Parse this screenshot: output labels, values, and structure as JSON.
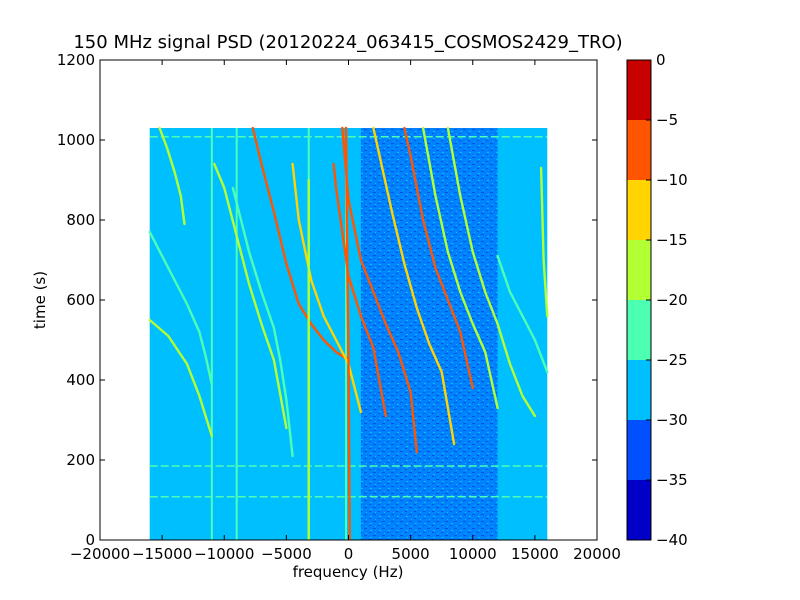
{
  "chart_data": {
    "type": "heatmap",
    "title": "150 MHz signal PSD (20120224_063415_COSMOS2429_TRO)",
    "xlabel": "frequency (Hz)",
    "ylabel": "time (s)",
    "xlim": [
      -20000,
      20000
    ],
    "ylim": [
      0,
      1200
    ],
    "x_ticks": [
      -20000,
      -15000,
      -10000,
      -5000,
      0,
      5000,
      10000,
      15000,
      20000
    ],
    "x_tick_labels": [
      "−20000",
      "−15000",
      "−10000",
      "−5000",
      "0",
      "5000",
      "10000",
      "15000",
      "20000"
    ],
    "y_ticks": [
      0,
      200,
      400,
      600,
      800,
      1000,
      1200
    ],
    "y_tick_labels": [
      "0",
      "200",
      "400",
      "600",
      "800",
      "1000",
      "1200"
    ],
    "data_extent": {
      "x": [
        -16000,
        16000
      ],
      "y": [
        0,
        1030
      ]
    },
    "background_level": -27.5,
    "noisy_region": {
      "x": [
        1000,
        12000
      ],
      "level": -32.5
    },
    "colorbar": {
      "levels": [
        -40,
        -35,
        -30,
        -25,
        -20,
        -15,
        -10,
        -5,
        0
      ],
      "tick_labels": [
        "−40",
        "−35",
        "−30",
        "−25",
        "−20",
        "−15",
        "−10",
        "−5",
        "0"
      ],
      "colors": [
        "#0000c8",
        "#0050ff",
        "#00bfff",
        "#4dffb3",
        "#b2ff33",
        "#ffd400",
        "#ff5500",
        "#c80000"
      ]
    },
    "vertical_lines": [
      {
        "x": -11000,
        "y": [
          0,
          1030
        ]
      },
      {
        "x": -9000,
        "y": [
          0,
          1030
        ]
      },
      {
        "x": -3200,
        "y": [
          0,
          1030
        ]
      },
      {
        "x": -200,
        "y": [
          0,
          1030
        ]
      }
    ],
    "horizontal_lines": [
      {
        "y": 1008,
        "x": [
          -16000,
          16000
        ]
      },
      {
        "y": 185,
        "x": [
          -16000,
          16000
        ]
      },
      {
        "y": 108,
        "x": [
          -16000,
          16000
        ]
      }
    ],
    "series": [
      {
        "x": [
          -15200,
          -14600,
          -14000,
          -13500,
          -13200
        ],
        "y": [
          1030,
          980,
          920,
          860,
          790
        ],
        "level": -17.5
      },
      {
        "x": [
          -16000,
          -14500,
          -13000,
          -12000,
          -11500,
          -11000
        ],
        "y": [
          770,
          680,
          590,
          520,
          460,
          390
        ],
        "level": -22.5
      },
      {
        "x": [
          -16000,
          -14500,
          -13000,
          -12000,
          -11000
        ],
        "y": [
          550,
          510,
          440,
          360,
          260
        ],
        "level": -17.5
      },
      {
        "x": [
          -10800,
          -10000,
          -9000,
          -8000,
          -7000,
          -6000,
          -5000
        ],
        "y": [
          940,
          880,
          760,
          640,
          540,
          450,
          280
        ],
        "level": -17.5
      },
      {
        "x": [
          -9300,
          -8000,
          -7000,
          -6000,
          -5500,
          -5000,
          -4500
        ],
        "y": [
          880,
          720,
          620,
          530,
          450,
          350,
          210
        ],
        "level": -22.5
      },
      {
        "x": [
          -7700,
          -7000,
          -6000,
          -5000,
          -4000,
          -3000,
          -2000,
          -1000,
          0
        ],
        "y": [
          1030,
          940,
          820,
          690,
          590,
          540,
          500,
          470,
          450
        ],
        "level": -7.5
      },
      {
        "x": [
          -4500,
          -4000,
          -3000,
          -2000,
          -1000,
          0,
          1000
        ],
        "y": [
          940,
          800,
          650,
          560,
          500,
          440,
          320
        ],
        "level": -12.5
      },
      {
        "x": [
          -1200,
          -1000,
          -500,
          0,
          1000,
          2000,
          3000
        ],
        "y": [
          940,
          880,
          770,
          660,
          560,
          480,
          310
        ],
        "level": -7.5
      },
      {
        "x": [
          -500,
          0,
          1000,
          2000,
          3000,
          4000,
          5000,
          5500
        ],
        "y": [
          1030,
          850,
          700,
          620,
          540,
          470,
          370,
          220
        ],
        "level": -7.5
      },
      {
        "x": [
          2000,
          2500,
          3500,
          4500,
          5500,
          6500,
          7500,
          8500
        ],
        "y": [
          1030,
          960,
          820,
          690,
          580,
          490,
          420,
          240
        ],
        "level": -12.5
      },
      {
        "x": [
          4500,
          5000,
          6000,
          7000,
          8000,
          9000,
          10000
        ],
        "y": [
          1030,
          960,
          800,
          680,
          600,
          520,
          380
        ],
        "level": -7.5
      },
      {
        "x": [
          6000,
          7000,
          8000,
          9000,
          10000,
          11000,
          12000
        ],
        "y": [
          1030,
          860,
          720,
          620,
          540,
          470,
          330
        ],
        "level": -17.5
      },
      {
        "x": [
          8000,
          9000,
          10000,
          11000,
          12000,
          13000,
          14000,
          15000
        ],
        "y": [
          1030,
          860,
          720,
          620,
          540,
          440,
          360,
          310
        ],
        "level": -17.5
      },
      {
        "x": [
          12000,
          13000,
          14000,
          15000,
          16000
        ],
        "y": [
          710,
          620,
          560,
          500,
          420
        ],
        "level": -22.5
      },
      {
        "x": [
          15500,
          15700,
          16000
        ],
        "y": [
          930,
          700,
          560
        ],
        "level": -17.5
      },
      {
        "x": [
          -200,
          -100,
          0,
          100
        ],
        "y": [
          1030,
          700,
          450,
          0
        ],
        "level": -7.5
      },
      {
        "x": [
          -3200,
          -3200
        ],
        "y": [
          900,
          0
        ],
        "level": -17.5
      }
    ]
  }
}
